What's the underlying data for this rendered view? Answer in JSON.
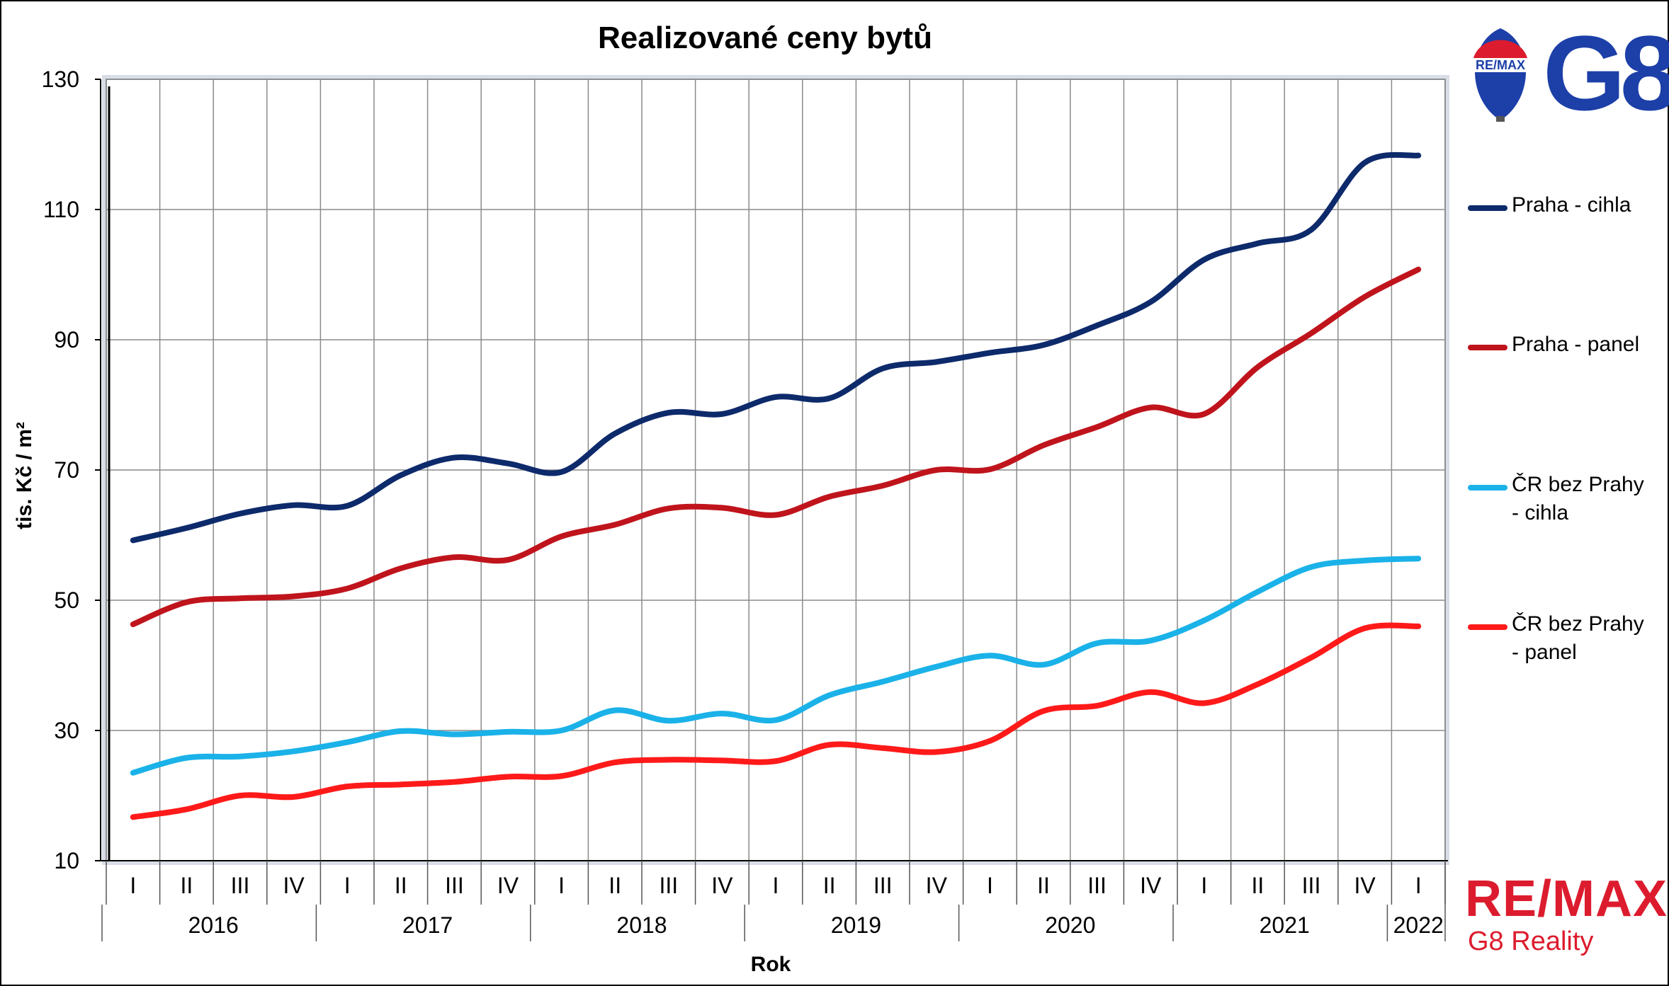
{
  "chart_data": {
    "type": "line",
    "title": "Realizované ceny bytů",
    "xlabel": "Rok",
    "ylabel": "tis. Kč / m²",
    "ylim": [
      10,
      130
    ],
    "yticks": [
      "10",
      "30",
      "50",
      "70",
      "90",
      "110",
      "130"
    ],
    "quarter_labels": [
      "I",
      "II",
      "III",
      "IV",
      "I",
      "II",
      "III",
      "IV",
      "I",
      "II",
      "III",
      "IV",
      "I",
      "II",
      "III",
      "IV",
      "I",
      "II",
      "III",
      "IV",
      "I",
      "II",
      "III",
      "IV",
      "I"
    ],
    "years": [
      "2016",
      "2017",
      "2018",
      "2019",
      "2020",
      "2021",
      "2022"
    ],
    "grid": true,
    "legend_position": "right",
    "series": [
      {
        "name": "Praha - cihla",
        "color": "#0d2a6b",
        "values": [
          59.2,
          61.1,
          63.3,
          64.6,
          64.5,
          69.2,
          71.9,
          71.0,
          69.7,
          75.6,
          78.8,
          78.6,
          81.2,
          81.0,
          85.6,
          86.6,
          88.0,
          89.2,
          92.2,
          95.8,
          102.3,
          104.8,
          106.9,
          117.2,
          118.3
        ]
      },
      {
        "name": "Praha - panel",
        "color": "#c0141c",
        "values": [
          46.3,
          49.7,
          50.3,
          50.6,
          51.8,
          54.9,
          56.6,
          56.2,
          59.8,
          61.6,
          64.1,
          64.2,
          63.1,
          65.9,
          67.6,
          70.0,
          70.1,
          73.8,
          76.6,
          79.6,
          78.6,
          85.8,
          91.0,
          96.6,
          100.8
        ]
      },
      {
        "name": "ČR bez Prahy - cihla",
        "color": "#1ab2e8",
        "values": [
          23.5,
          25.8,
          26.0,
          26.8,
          28.2,
          29.9,
          29.4,
          29.8,
          30.0,
          33.1,
          31.5,
          32.6,
          31.6,
          35.4,
          37.5,
          39.8,
          41.5,
          40.1,
          43.4,
          43.8,
          46.9,
          51.3,
          55.1,
          56.1,
          56.4
        ]
      },
      {
        "name": "ČR bez Prahy - panel",
        "color": "#ff1a1a",
        "values": [
          16.7,
          17.9,
          20.0,
          19.8,
          21.4,
          21.7,
          22.1,
          22.9,
          23.0,
          25.1,
          25.5,
          25.4,
          25.3,
          27.8,
          27.3,
          26.7,
          28.4,
          33.0,
          33.8,
          35.9,
          34.2,
          37.1,
          41.2,
          45.7,
          46.0
        ]
      }
    ]
  },
  "legend": {
    "items": [
      {
        "label": "Praha - cihla",
        "color": "#0d2a6b"
      },
      {
        "label": "Praha - panel",
        "color": "#c0141c"
      },
      {
        "label": "ČR bez Prahy\n- cihla",
        "color": "#1ab2e8"
      },
      {
        "label": "ČR bez Prahy\n- panel",
        "color": "#ff1a1a"
      }
    ]
  },
  "logo": {
    "balloon_text": "RE/MAX",
    "g8_text": "G8",
    "brand": "RE/MAX",
    "subtitle": "G8 Reality"
  }
}
